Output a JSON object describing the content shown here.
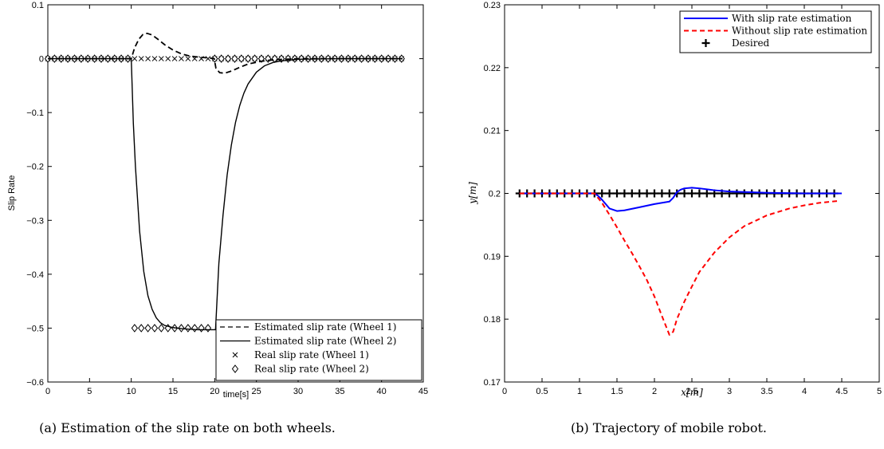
{
  "chart_data": [
    {
      "type": "line",
      "caption": "(a) Estimation of the slip rate on both wheels.",
      "title": "",
      "xlabel": "time[s]",
      "ylabel": "Slip Rate",
      "xlim": [
        0,
        45
      ],
      "ylim": [
        -0.6,
        0.1
      ],
      "xticks": [
        0,
        5,
        10,
        15,
        20,
        25,
        30,
        35,
        40,
        45
      ],
      "yticks": [
        0.1,
        0,
        -0.1,
        -0.2,
        -0.3,
        -0.4,
        -0.5,
        -0.6
      ],
      "ytick_labels": [
        "0.1",
        "0",
        "−0.1",
        "−0.2",
        "−0.3",
        "−0.4",
        "−0.5",
        "−0.6"
      ],
      "grid": false,
      "legend_position": "bottom-right",
      "series": [
        {
          "name": "Estimated slip rate (Wheel 1)",
          "style": "dashed",
          "color": "#000000",
          "x": [
            0,
            10,
            10.4,
            10.9,
            11.4,
            11.9,
            12.5,
            13.2,
            14,
            15,
            16,
            17,
            18,
            19.5,
            19.95,
            20.15,
            20.6,
            21.2,
            22,
            23,
            24,
            25.5,
            27,
            30,
            35,
            40,
            42.5
          ],
          "y": [
            0,
            0,
            0.02,
            0.036,
            0.045,
            0.047,
            0.044,
            0.036,
            0.026,
            0.016,
            0.009,
            0.005,
            0.003,
            0.001,
            0,
            -0.018,
            -0.026,
            -0.027,
            -0.023,
            -0.016,
            -0.01,
            -0.005,
            -0.002,
            0,
            0,
            0,
            0
          ]
        },
        {
          "name": "Estimated slip rate (Wheel 2)",
          "style": "solid",
          "color": "#000000",
          "x": [
            0,
            10,
            10.25,
            10.5,
            11,
            11.5,
            12,
            12.5,
            13,
            13.5,
            14,
            15,
            16,
            17,
            18,
            19,
            19.9,
            20.1,
            20.5,
            21,
            21.5,
            22,
            22.5,
            23,
            23.5,
            24,
            25,
            26,
            27,
            28,
            30,
            35,
            42.5
          ],
          "y": [
            0,
            0,
            -0.12,
            -0.2,
            -0.32,
            -0.395,
            -0.44,
            -0.465,
            -0.481,
            -0.49,
            -0.495,
            -0.499,
            -0.501,
            -0.502,
            -0.503,
            -0.503,
            -0.503,
            -0.503,
            -0.38,
            -0.29,
            -0.215,
            -0.16,
            -0.118,
            -0.087,
            -0.064,
            -0.047,
            -0.025,
            -0.013,
            -0.007,
            -0.004,
            -0.001,
            0,
            0
          ]
        },
        {
          "name": "Real slip rate (Wheel 1)",
          "style": "x-markers",
          "color": "#000000",
          "x": [
            0,
            0.8,
            1.6,
            2.4,
            3.2,
            4,
            4.8,
            5.6,
            6.4,
            7.2,
            8,
            8.8,
            9.6,
            10.4,
            11.2,
            12,
            12.8,
            13.6,
            14.4,
            15.2,
            16,
            16.8,
            17.6,
            18.4,
            19.2,
            20,
            20.8,
            21.6,
            22.4,
            23.2,
            24,
            24.8,
            25.6,
            26.4,
            27.2,
            28,
            28.8,
            29.6,
            30.4,
            31.2,
            32,
            32.8,
            33.6,
            34.4,
            35.2,
            36,
            36.8,
            37.6,
            38.4,
            39.2,
            40,
            40.8,
            41.6,
            42.4
          ],
          "y": [
            0,
            0,
            0,
            0,
            0,
            0,
            0,
            0,
            0,
            0,
            0,
            0,
            0,
            0,
            0,
            0,
            0,
            0,
            0,
            0,
            0,
            0,
            0,
            0,
            0,
            0,
            0,
            0,
            0,
            0,
            0,
            0,
            0,
            0,
            0,
            0,
            0,
            0,
            0,
            0,
            0,
            0,
            0,
            0,
            0,
            0,
            0,
            0,
            0,
            0,
            0,
            0,
            0,
            0
          ]
        },
        {
          "name": "Real slip rate (Wheel 2)",
          "style": "diamond-markers",
          "color": "#000000",
          "x": [
            0,
            0.8,
            1.6,
            2.4,
            3.2,
            4,
            4.8,
            5.6,
            6.4,
            7.2,
            8,
            8.8,
            9.6,
            10.4,
            11.2,
            12,
            12.8,
            13.6,
            14.4,
            15.2,
            16,
            16.8,
            17.6,
            18.4,
            19.2,
            20,
            20.8,
            21.6,
            22.4,
            23.2,
            24,
            24.8,
            25.6,
            26.4,
            27.2,
            28,
            28.8,
            29.6,
            30.4,
            31.2,
            32,
            32.8,
            33.6,
            34.4,
            35.2,
            36,
            36.8,
            37.6,
            38.4,
            39.2,
            40,
            40.8,
            41.6,
            42.4
          ],
          "y": [
            0,
            0,
            0,
            0,
            0,
            0,
            0,
            0,
            0,
            0,
            0,
            0,
            0,
            -0.5,
            -0.5,
            -0.5,
            -0.5,
            -0.5,
            -0.5,
            -0.5,
            -0.5,
            -0.5,
            -0.5,
            -0.5,
            -0.5,
            0,
            0,
            0,
            0,
            0,
            0,
            0,
            0,
            0,
            0,
            0,
            0,
            0,
            0,
            0,
            0,
            0,
            0,
            0,
            0,
            0,
            0,
            0,
            0,
            0,
            0,
            0,
            0,
            0
          ]
        }
      ]
    },
    {
      "type": "line",
      "caption": "(b) Trajectory of mobile robot.",
      "title": "",
      "xlabel": "x[m]",
      "ylabel": "y[m]",
      "xlim": [
        0,
        5
      ],
      "ylim": [
        0.17,
        0.23
      ],
      "xticks": [
        0,
        0.5,
        1,
        1.5,
        2,
        2.5,
        3,
        3.5,
        4,
        4.5,
        5
      ],
      "yticks": [
        0.23,
        0.22,
        0.21,
        0.2,
        0.19,
        0.18,
        0.17
      ],
      "ytick_labels": [
        "0.23",
        "0.22",
        "0.21",
        "0.2",
        "0.19",
        "0.18",
        "0.17"
      ],
      "grid": false,
      "legend_position": "top-right",
      "series": [
        {
          "name": "With slip rate estimation",
          "style": "solid",
          "color": "#0000ff",
          "x": [
            0.2,
            1.2,
            1.25,
            1.3,
            1.35,
            1.4,
            1.5,
            1.6,
            1.8,
            2,
            2.2,
            2.25,
            2.3,
            2.35,
            2.4,
            2.5,
            2.6,
            2.8,
            3,
            3.5,
            4,
            4.5
          ],
          "y": [
            0.2,
            0.2,
            0.1996,
            0.199,
            0.1983,
            0.1976,
            0.1972,
            0.1973,
            0.1978,
            0.1983,
            0.1987,
            0.1993,
            0.2002,
            0.2006,
            0.2008,
            0.2009,
            0.2008,
            0.2005,
            0.2003,
            0.2001,
            0.2,
            0.2
          ]
        },
        {
          "name": "Without slip rate estimation",
          "style": "dashed",
          "color": "#ff0000",
          "x": [
            0.2,
            1.2,
            1.3,
            1.4,
            1.5,
            1.6,
            1.7,
            1.8,
            1.9,
            2,
            2.1,
            2.2,
            2.25,
            2.3,
            2.4,
            2.5,
            2.6,
            2.8,
            3,
            3.2,
            3.5,
            3.8,
            4,
            4.2,
            4.45
          ],
          "y": [
            0.2,
            0.2,
            0.1985,
            0.1966,
            0.1946,
            0.1925,
            0.1905,
            0.1884,
            0.1862,
            0.1836,
            0.1805,
            0.1775,
            0.178,
            0.18,
            0.1828,
            0.1852,
            0.1875,
            0.1906,
            0.193,
            0.1948,
            0.1965,
            0.1976,
            0.1981,
            0.1985,
            0.1988
          ]
        },
        {
          "name": "Desired",
          "style": "plus-markers",
          "color": "#000000",
          "x": [
            0.2,
            0.3,
            0.4,
            0.5,
            0.6,
            0.7,
            0.8,
            0.9,
            1,
            1.1,
            1.2,
            1.3,
            1.4,
            1.5,
            1.6,
            1.7,
            1.8,
            1.9,
            2,
            2.1,
            2.2,
            2.3,
            2.4,
            2.5,
            2.6,
            2.7,
            2.8,
            2.9,
            3,
            3.1,
            3.2,
            3.3,
            3.4,
            3.5,
            3.6,
            3.7,
            3.8,
            3.9,
            4,
            4.1,
            4.2,
            4.3,
            4.4
          ],
          "y": [
            0.2,
            0.2,
            0.2,
            0.2,
            0.2,
            0.2,
            0.2,
            0.2,
            0.2,
            0.2,
            0.2,
            0.2,
            0.2,
            0.2,
            0.2,
            0.2,
            0.2,
            0.2,
            0.2,
            0.2,
            0.2,
            0.2,
            0.2,
            0.2,
            0.2,
            0.2,
            0.2,
            0.2,
            0.2,
            0.2,
            0.2,
            0.2,
            0.2,
            0.2,
            0.2,
            0.2,
            0.2,
            0.2,
            0.2,
            0.2,
            0.2,
            0.2,
            0.2
          ]
        }
      ]
    }
  ]
}
